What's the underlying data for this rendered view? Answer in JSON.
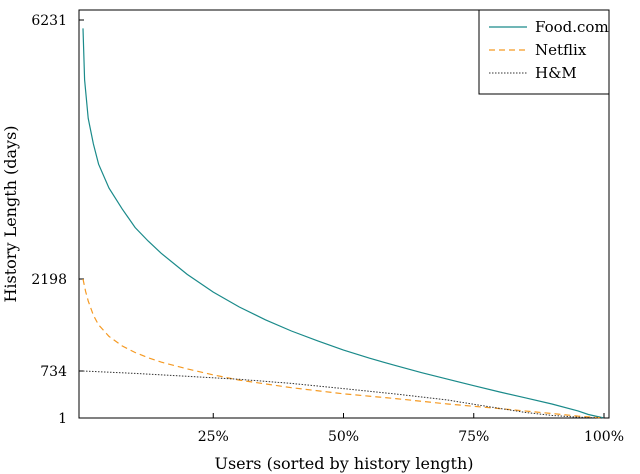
{
  "chart_data": {
    "type": "line",
    "xlabel": "Users (sorted by history length)",
    "ylabel": "History Length (days)",
    "x_ticks": [
      "25%",
      "50%",
      "75%",
      "100%"
    ],
    "x_tick_values": [
      25,
      50,
      75,
      100
    ],
    "y_ticks": [
      "1",
      "734",
      "2198",
      "6231"
    ],
    "y_tick_values": [
      1,
      734,
      2198,
      6231
    ],
    "xlim": [
      0,
      100
    ],
    "ylim": [
      1,
      6231
    ],
    "grid": false,
    "legend_position": "top-right",
    "series": [
      {
        "name": "Food.com",
        "color": "#1a8a8a",
        "style": "solid",
        "x": [
          0,
          0.3,
          1,
          2,
          3,
          5,
          7.5,
          10,
          12.5,
          15,
          20,
          25,
          30,
          35,
          40,
          45,
          50,
          55,
          60,
          65,
          70,
          75,
          80,
          85,
          90,
          95,
          97,
          100
        ],
        "y": [
          6100,
          5300,
          4700,
          4300,
          3985,
          3614,
          3291,
          3000,
          2790,
          2600,
          2270,
          1990,
          1752,
          1548,
          1370,
          1214,
          1067,
          938,
          820,
          707,
          606,
          505,
          407,
          314,
          219,
          112,
          55,
          1
        ]
      },
      {
        "name": "Netflix",
        "color": "#f59a23",
        "style": "dashed",
        "x": [
          0,
          0.5,
          1,
          2,
          3,
          5,
          7.5,
          10,
          12.5,
          15,
          20,
          25,
          30,
          40,
          50,
          60,
          70,
          80,
          90,
          95,
          100
        ],
        "y": [
          2198,
          2000,
          1850,
          1620,
          1467,
          1285,
          1134,
          1028,
          946,
          875,
          767,
          673,
          592,
          474,
          379,
          303,
          220,
          148,
          71,
          31,
          1
        ]
      },
      {
        "name": "H&M",
        "color": "#333333",
        "style": "dotted",
        "x": [
          0,
          10,
          20,
          30,
          40,
          50,
          60,
          70,
          75,
          80,
          85,
          90,
          95,
          100
        ],
        "y": [
          734,
          697,
          651,
          605,
          540,
          459,
          376,
          281,
          215,
          151,
          87,
          41,
          14,
          1
        ]
      }
    ]
  }
}
